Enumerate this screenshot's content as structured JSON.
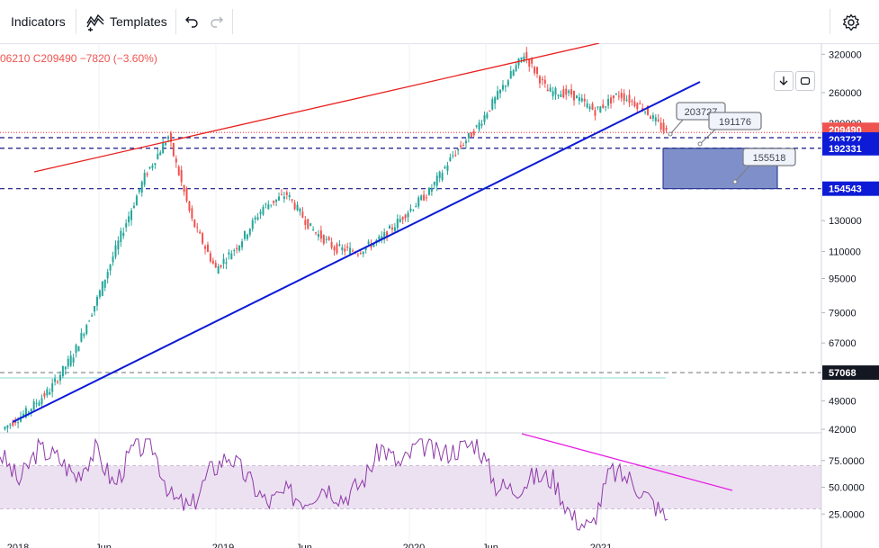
{
  "toolbar": {
    "indicators_label": "Indicators",
    "templates_label": "Templates",
    "undo_icon": "undo-icon",
    "redo_icon": "redo-icon",
    "settings_icon": "gear-icon"
  },
  "legend": {
    "text": "06210  C209490  −7820  (−3.60%)"
  },
  "colors": {
    "up": "#26a69a",
    "down": "#ef5350",
    "trendline_blue": "#0d1bd6",
    "trendline_red": "#e8201e",
    "rsi": "#8e3aa8",
    "rsi_band": "#ece1f1",
    "rsi_trend": "#e61ee6",
    "box": "#7f8fc9"
  },
  "price_axis": {
    "ticks": [
      "320000",
      "260000",
      "220000",
      "130000",
      "110000",
      "95000",
      "79000",
      "67000",
      "49000",
      "42000"
    ],
    "badges": [
      {
        "label": "209490",
        "bg": "#ef5350",
        "fg": "#ffffff"
      },
      {
        "label": "203727",
        "bg": "#0d1bd6",
        "fg": "#ffffff"
      },
      {
        "label": "192331",
        "bg": "#0d1bd6",
        "fg": "#ffffff"
      },
      {
        "label": "154543",
        "bg": "#0d1bd6",
        "fg": "#ffffff"
      },
      {
        "label": "57068",
        "bg": "#131722",
        "fg": "#ffffff"
      }
    ]
  },
  "rsi_axis": {
    "ticks": [
      "75.0000",
      "50.0000",
      "25.0000"
    ]
  },
  "time_axis": {
    "labels": [
      "2018",
      "Jun",
      "2019",
      "Jun",
      "2020",
      "Jun",
      "2021"
    ]
  },
  "callouts": [
    "203727",
    "191176",
    "155518"
  ],
  "chart_data": {
    "type": "line",
    "title": "",
    "xlabel": "",
    "ylabel": "",
    "log_scale": true,
    "ylim": [
      40000,
      330000
    ],
    "series": [
      {
        "values": [
          42000,
          46000,
          52000,
          63000,
          85000,
          120000,
          165000,
          205000,
          130000,
          100000,
          115000,
          140000,
          150000,
          125000,
          112000,
          110000,
          118000,
          135000,
          152000,
          185000,
          215000,
          262000,
          320000,
          262000,
          258000,
          235000,
          258000,
          240000,
          209490
        ]
      }
    ],
    "rsi_values": [
      82,
      55,
      86,
      78,
      60,
      85,
      52,
      87,
      88,
      40,
      30,
      65,
      80,
      58,
      35,
      45,
      38,
      52,
      40,
      55,
      88,
      70,
      92,
      80,
      86,
      92,
      52,
      48,
      60,
      58,
      22,
      12,
      65,
      58,
      40,
      20
    ],
    "rsi_ylim": [
      0,
      100
    ],
    "rsi_band": [
      30,
      70
    ]
  }
}
